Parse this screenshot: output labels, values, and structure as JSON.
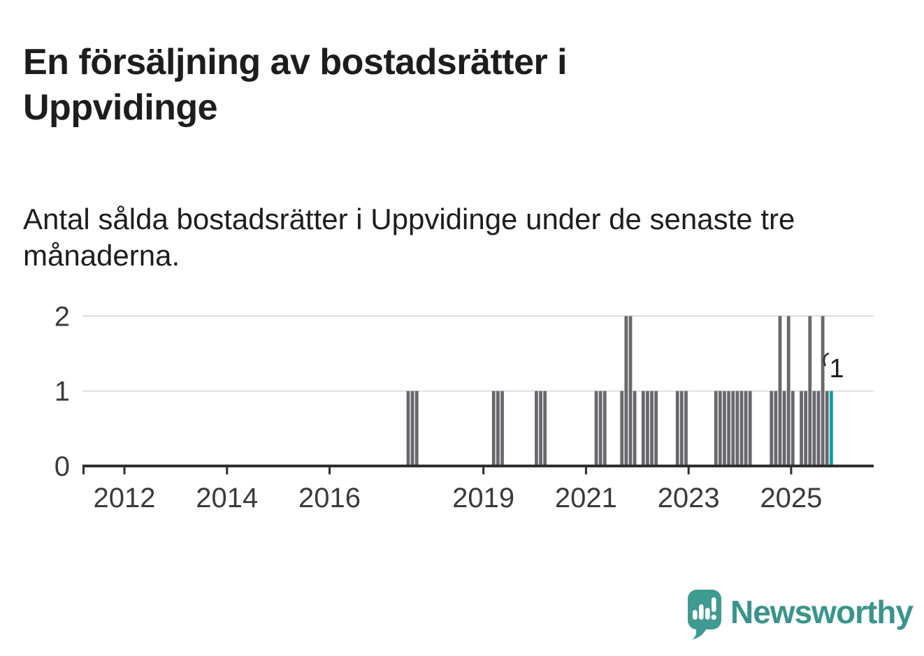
{
  "header": {
    "title": "En försäljning av bostadsrätter i Uppvidinge",
    "subtitle": "Antal sålda bostadsrätter i Uppvidinge under de senaste tre månaderna."
  },
  "logo": {
    "wordmark": "Newsworthy"
  },
  "colors": {
    "bar": "#68686d",
    "accent": "#089fa2",
    "axis": "#2f2f2f",
    "tick_label": "#3a3a3a",
    "grid": "#dedede",
    "text": "#1d1d1b",
    "logo_bubble": "#3f9a92",
    "logo_text": "#3a948c"
  },
  "chart_data": {
    "type": "bar",
    "title": "En försäljning av bostadsrätter i Uppvidinge",
    "xlabel": "",
    "ylabel": "",
    "grid": "horizontal",
    "ylim": [
      0,
      2
    ],
    "y_ticks": [
      "0",
      "1",
      "2"
    ],
    "x_ticks": [
      2012,
      2014,
      2016,
      2019,
      2021,
      2023,
      2025
    ],
    "x_domain_years": [
      2011.2,
      2026.6
    ],
    "annotation": {
      "label": "1",
      "month": "2025-10"
    },
    "bars": [
      {
        "month": "2017-07",
        "value": 1
      },
      {
        "month": "2017-08",
        "value": 1
      },
      {
        "month": "2017-09",
        "value": 1
      },
      {
        "month": "2019-03",
        "value": 1
      },
      {
        "month": "2019-04",
        "value": 1
      },
      {
        "month": "2019-05",
        "value": 1
      },
      {
        "month": "2020-01",
        "value": 1
      },
      {
        "month": "2020-02",
        "value": 1
      },
      {
        "month": "2020-03",
        "value": 1
      },
      {
        "month": "2021-03",
        "value": 1
      },
      {
        "month": "2021-04",
        "value": 1
      },
      {
        "month": "2021-05",
        "value": 1
      },
      {
        "month": "2021-09",
        "value": 1
      },
      {
        "month": "2021-10",
        "value": 2
      },
      {
        "month": "2021-11",
        "value": 2
      },
      {
        "month": "2021-12",
        "value": 1
      },
      {
        "month": "2022-02",
        "value": 1
      },
      {
        "month": "2022-03",
        "value": 1
      },
      {
        "month": "2022-04",
        "value": 1
      },
      {
        "month": "2022-05",
        "value": 1
      },
      {
        "month": "2022-10",
        "value": 1
      },
      {
        "month": "2022-11",
        "value": 1
      },
      {
        "month": "2022-12",
        "value": 1
      },
      {
        "month": "2023-07",
        "value": 1
      },
      {
        "month": "2023-08",
        "value": 1
      },
      {
        "month": "2023-09",
        "value": 1
      },
      {
        "month": "2023-10",
        "value": 1
      },
      {
        "month": "2023-11",
        "value": 1
      },
      {
        "month": "2023-12",
        "value": 1
      },
      {
        "month": "2024-01",
        "value": 1
      },
      {
        "month": "2024-02",
        "value": 1
      },
      {
        "month": "2024-03",
        "value": 1
      },
      {
        "month": "2024-08",
        "value": 1
      },
      {
        "month": "2024-09",
        "value": 1
      },
      {
        "month": "2024-10",
        "value": 2
      },
      {
        "month": "2024-11",
        "value": 1
      },
      {
        "month": "2024-12",
        "value": 2
      },
      {
        "month": "2025-01",
        "value": 1
      },
      {
        "month": "2025-03",
        "value": 1
      },
      {
        "month": "2025-04",
        "value": 1
      },
      {
        "month": "2025-05",
        "value": 2
      },
      {
        "month": "2025-06",
        "value": 1
      },
      {
        "month": "2025-07",
        "value": 1
      },
      {
        "month": "2025-08",
        "value": 2
      },
      {
        "month": "2025-09",
        "value": 1
      },
      {
        "month": "2025-10",
        "value": 1,
        "highlight": true
      }
    ]
  }
}
